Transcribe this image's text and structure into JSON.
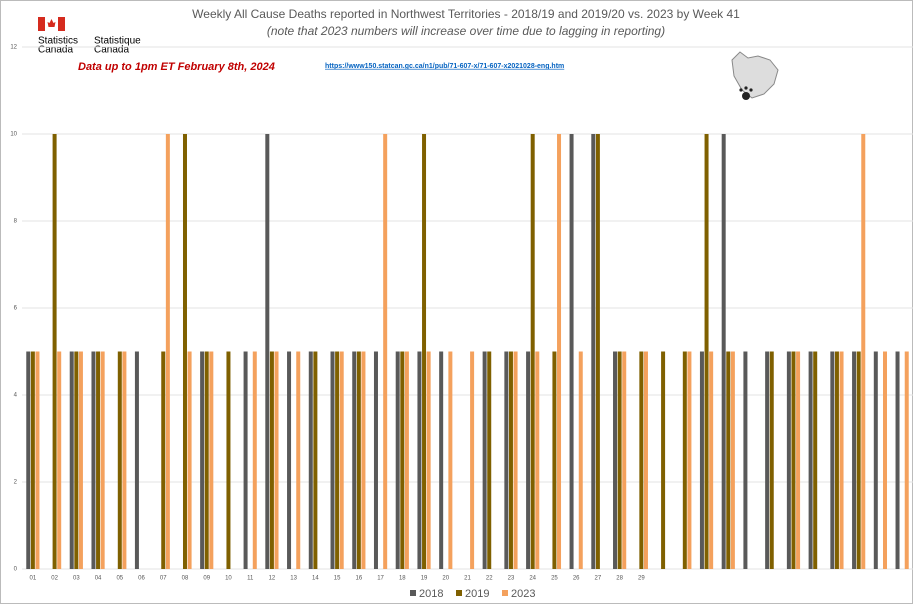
{
  "chart_data": {
    "type": "bar",
    "title": "Weekly All Cause Deaths reported in Northwest Territories - 2018/19 and 2019/20 vs. 2023 by Week 41",
    "subtitle": "(note that 2023 numbers will increase over time due to lagging in reporting)",
    "annotation": "Data up to 1pm ET February 8th, 2024",
    "source_url": "https://www150.statcan.gc.ca/n1/pub/71-607-x/71-607-x2021028-eng.htm",
    "logo": {
      "en": [
        "Statistics",
        "Canada"
      ],
      "fr": [
        "Statistique",
        "Canada"
      ]
    },
    "categories": [
      "01",
      "02",
      "03",
      "04",
      "05",
      "06",
      "07",
      "08",
      "09",
      "10",
      "11",
      "12",
      "13",
      "14",
      "15",
      "16",
      "17",
      "18",
      "19",
      "20",
      "21",
      "22",
      "23",
      "24",
      "25",
      "26",
      "27",
      "28",
      "29",
      null,
      null,
      null,
      null,
      null,
      null,
      null,
      null,
      null,
      null,
      null,
      null
    ],
    "series": [
      {
        "name": "2018",
        "color": "#595959",
        "values": [
          5,
          0,
          5,
          5,
          0,
          5,
          0,
          0,
          5,
          0,
          5,
          10,
          5,
          5,
          5,
          5,
          5,
          5,
          5,
          5,
          0,
          5,
          5,
          5,
          0,
          10,
          10,
          5,
          0,
          0,
          0,
          5,
          10,
          5,
          5,
          5,
          5,
          5,
          5,
          5,
          5
        ]
      },
      {
        "name": "2019",
        "color": "#7f6000",
        "values": [
          5,
          10,
          5,
          5,
          5,
          0,
          5,
          10,
          5,
          5,
          0,
          5,
          0,
          5,
          5,
          5,
          0,
          5,
          10,
          0,
          0,
          5,
          5,
          10,
          5,
          0,
          10,
          5,
          5,
          5,
          5,
          10,
          5,
          0,
          5,
          5,
          5,
          5,
          5,
          0,
          0
        ]
      },
      {
        "name": "2023",
        "color": "#f4a15d",
        "values": [
          5,
          5,
          5,
          5,
          5,
          0,
          10,
          5,
          5,
          0,
          5,
          5,
          5,
          0,
          5,
          5,
          10,
          5,
          5,
          5,
          5,
          0,
          5,
          5,
          10,
          5,
          0,
          5,
          5,
          0,
          5,
          5,
          5,
          0,
          0,
          5,
          0,
          5,
          10,
          5,
          5
        ]
      }
    ],
    "ylim": [
      0,
      12
    ],
    "yticks": [
      0,
      2,
      4,
      6,
      8,
      10,
      12
    ],
    "grid": true,
    "legend": "bottom"
  }
}
